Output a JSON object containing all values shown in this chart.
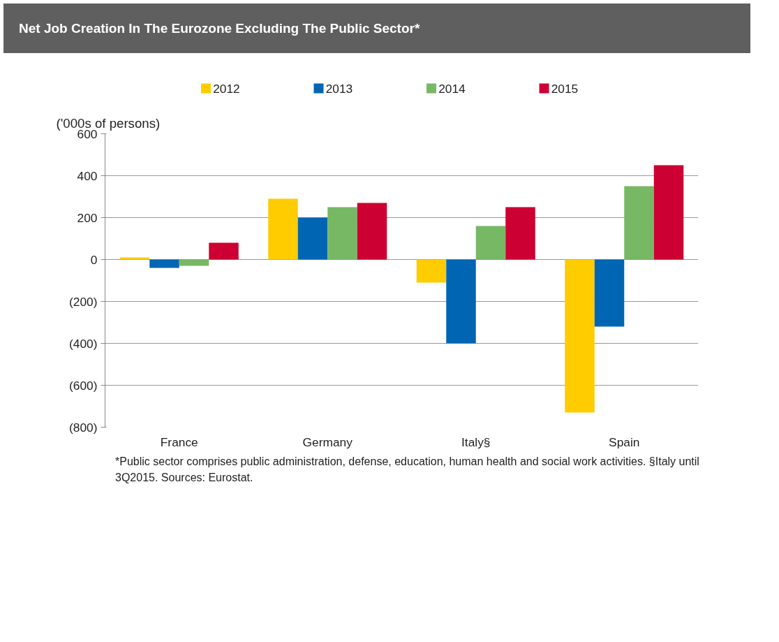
{
  "chart_data": {
    "type": "bar",
    "title": "Net Job Creation In The Eurozone Excluding The Public Sector*",
    "ylabel": "('000s of persons)",
    "categories": [
      "France",
      "Germany",
      "Italy§",
      "Spain"
    ],
    "series": [
      {
        "name": "2012",
        "color": "#ffcc00",
        "values": [
          10,
          290,
          -110,
          -730
        ]
      },
      {
        "name": "2013",
        "color": "#0066b3",
        "values": [
          -40,
          200,
          -400,
          -320
        ]
      },
      {
        "name": "2014",
        "color": "#77b865",
        "values": [
          -30,
          250,
          160,
          350
        ]
      },
      {
        "name": "2015",
        "color": "#cc0033",
        "values": [
          80,
          270,
          250,
          450
        ]
      }
    ],
    "ylim": [
      -800,
      600
    ],
    "yticks": [
      {
        "value": -800,
        "label": "(800)"
      },
      {
        "value": -600,
        "label": "(600)"
      },
      {
        "value": -400,
        "label": "(400)"
      },
      {
        "value": -200,
        "label": "(200)"
      },
      0,
      200,
      400,
      600
    ],
    "grid": "y",
    "legend": "top",
    "annotations": [
      "*Public sector comprises public administration, defense, education, human health and social work activities. §Italy until 3Q2015. Sources: Eurostat."
    ]
  }
}
